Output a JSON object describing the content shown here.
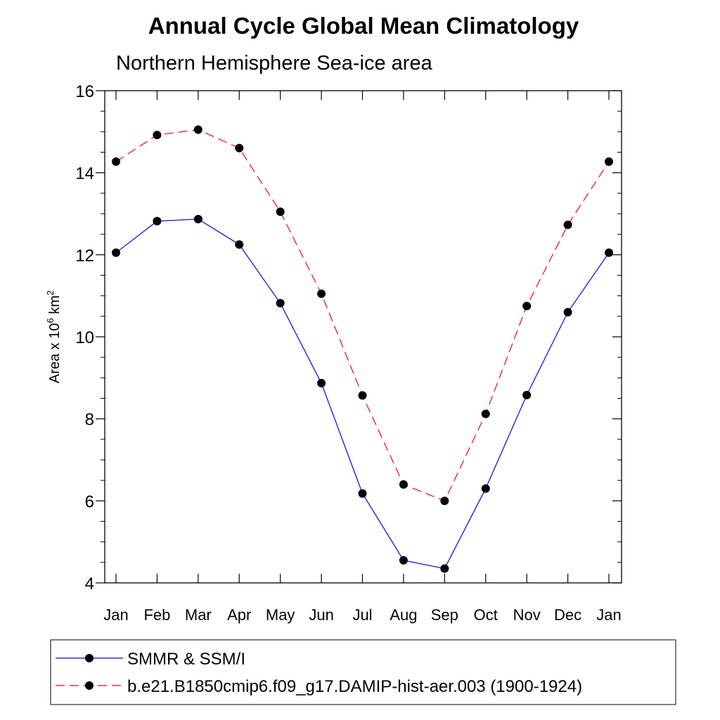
{
  "chart_data": {
    "type": "line",
    "title": "Annual Cycle Global Mean Climatology",
    "subtitle": "Northern Hemisphere Sea-ice area",
    "ylabel_parts": {
      "base": "Area x 10",
      "sup1": "6",
      "mid": " km",
      "sup2": "2"
    },
    "xlabel": "",
    "categories": [
      "Jan",
      "Feb",
      "Mar",
      "Apr",
      "May",
      "Jun",
      "Jul",
      "Aug",
      "Sep",
      "Oct",
      "Nov",
      "Dec",
      "Jan"
    ],
    "ylim": [
      4,
      16
    ],
    "yticks": [
      4,
      6,
      8,
      10,
      12,
      14,
      16
    ],
    "grid": false,
    "legend_position": "bottom",
    "series": [
      {
        "name": "SMMR & SSM/I",
        "color": "#0000ff",
        "dash": "solid",
        "values": [
          12.05,
          12.82,
          12.87,
          12.25,
          10.82,
          8.87,
          6.18,
          4.55,
          4.35,
          6.3,
          8.58,
          10.6,
          12.05
        ]
      },
      {
        "name": "b.e21.B1850cmip6.f09_g17.DAMIP-hist-aer.003 (1900-1924)",
        "color": "#ff0000",
        "dash": "dashed",
        "values": [
          14.27,
          14.92,
          15.05,
          14.6,
          13.05,
          11.05,
          8.57,
          6.4,
          6.0,
          8.12,
          10.75,
          12.73,
          14.27
        ]
      }
    ]
  }
}
